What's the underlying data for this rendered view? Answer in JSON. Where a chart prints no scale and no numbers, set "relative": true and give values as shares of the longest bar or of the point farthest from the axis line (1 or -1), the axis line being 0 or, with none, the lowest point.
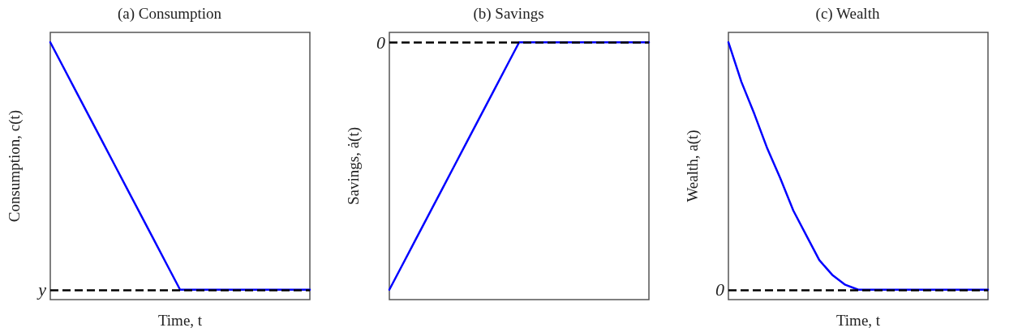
{
  "chart_data": [
    {
      "type": "line",
      "title": "(a) Consumption",
      "ylabel": "Consumption, c(t)",
      "xlabel": "Time, t",
      "relative": true,
      "categories": [
        null,
        null,
        null,
        null,
        null,
        null,
        null,
        null,
        null,
        null,
        null,
        null,
        null,
        null,
        null,
        null,
        null,
        null,
        null,
        null,
        null
      ],
      "series": [
        {
          "color": "#0000ff",
          "values": [
            1,
            0.9,
            0.8,
            0.7,
            0.6,
            0.5,
            0.4,
            0.3,
            0.2,
            0.1,
            0,
            0,
            0,
            0,
            0,
            0,
            0,
            0,
            0,
            0,
            0
          ]
        }
      ],
      "ref_lines": [
        {
          "axis": "y",
          "value": 0,
          "label": "y",
          "color": "#000000",
          "line_style": "dashed"
        }
      ]
    },
    {
      "type": "line",
      "title": "(b) Savings",
      "ylabel": "Savings, ȧ(t)",
      "relative": true,
      "categories": [
        null,
        null,
        null,
        null,
        null,
        null,
        null,
        null,
        null,
        null,
        null,
        null,
        null,
        null,
        null,
        null,
        null,
        null,
        null,
        null,
        null
      ],
      "series": [
        {
          "color": "#0000ff",
          "values": [
            -1,
            -0.9,
            -0.8,
            -0.7,
            -0.6,
            -0.5,
            -0.4,
            -0.3,
            -0.2,
            -0.1,
            0,
            0,
            0,
            0,
            0,
            0,
            0,
            0,
            0,
            0,
            0
          ]
        }
      ],
      "ref_lines": [
        {
          "axis": "y",
          "value": 0,
          "label": "0",
          "color": "#000000",
          "line_style": "dashed"
        }
      ]
    },
    {
      "type": "line",
      "title": "(c) Wealth",
      "ylabel": "Wealth, a(t)",
      "xlabel": "Time, t",
      "relative": true,
      "categories": [
        null,
        null,
        null,
        null,
        null,
        null,
        null,
        null,
        null,
        null,
        null,
        null,
        null,
        null,
        null,
        null,
        null,
        null,
        null,
        null,
        null
      ],
      "series": [
        {
          "color": "#0000ff",
          "values": [
            1,
            0.84,
            0.71,
            0.57,
            0.45,
            0.32,
            0.22,
            0.12,
            0.06,
            0.02,
            0,
            0,
            0,
            0,
            0,
            0,
            0,
            0,
            0,
            0,
            0
          ]
        }
      ],
      "ref_lines": [
        {
          "axis": "y",
          "value": 0,
          "label": "0",
          "color": "#000000",
          "line_style": "dashed"
        }
      ]
    }
  ]
}
